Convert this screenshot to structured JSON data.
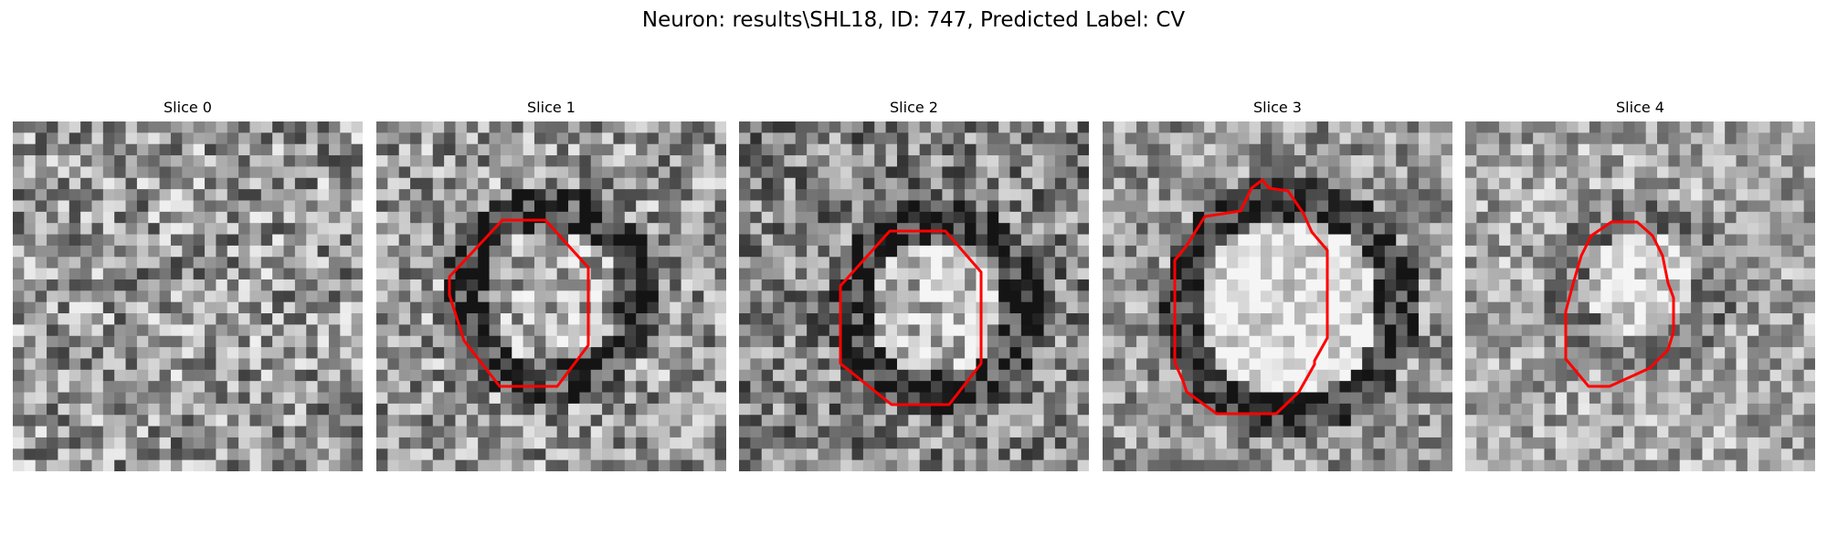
{
  "figure": {
    "title": "Neuron: results\\SHL18, ID: 747, Predicted Label: CV"
  },
  "slices": [
    {
      "title": "Slice 0",
      "contour": false,
      "variant": "noise"
    },
    {
      "title": "Slice 1",
      "contour": true,
      "variant": "dark-ring"
    },
    {
      "title": "Slice 2",
      "contour": true,
      "variant": "bright-cell"
    },
    {
      "title": "Slice 3",
      "contour": true,
      "variant": "large-cell"
    },
    {
      "title": "Slice 4",
      "contour": true,
      "variant": "small-cell"
    }
  ],
  "colors": {
    "contour": "#ff0000",
    "background": "#ffffff"
  }
}
